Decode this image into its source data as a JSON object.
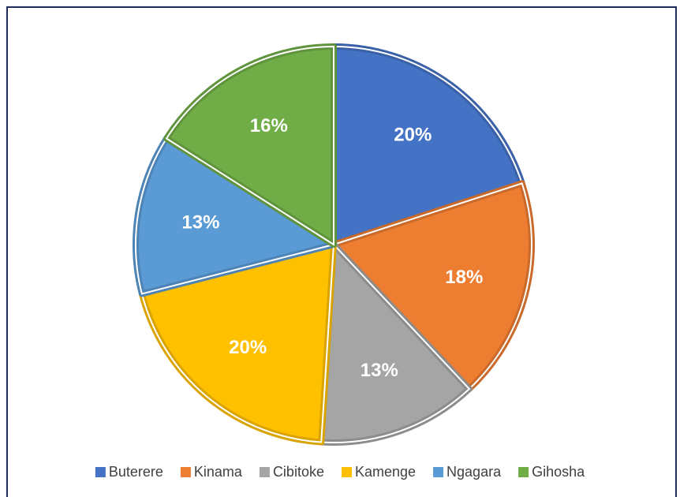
{
  "chart_data": {
    "type": "pie",
    "categories": [
      "Buterere",
      "Kinama",
      "Cibitoke",
      "Kamenge",
      "Ngagara",
      "Gihosha"
    ],
    "values": [
      20,
      18,
      13,
      20,
      13,
      16
    ],
    "value_labels": [
      "20%",
      "18%",
      "13%",
      "20%",
      "13%",
      "16%"
    ],
    "colors": [
      "#4472c4",
      "#ed7d31",
      "#a5a5a5",
      "#ffc000",
      "#5b9bd5",
      "#70ad47"
    ],
    "legend": "bottom"
  }
}
